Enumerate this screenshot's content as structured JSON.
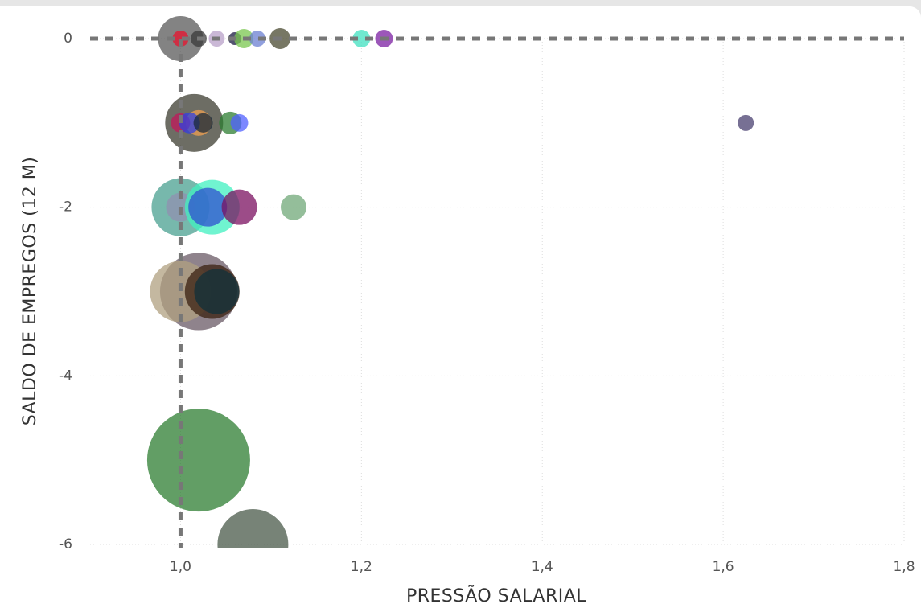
{
  "chart_data": {
    "type": "scatter",
    "x_label": "PRESSÃO SALARIAL",
    "y_label": "SALDO DE EMPREGOS (12 M)",
    "x": [
      1.0,
      1.0,
      1.02,
      1.04,
      1.06,
      1.07,
      1.085,
      1.11,
      1.2,
      1.225,
      1.015,
      1.02,
      1.0,
      1.01,
      1.025,
      1.055,
      1.065,
      1.625,
      1.0,
      1.0,
      1.035,
      1.03,
      1.065,
      1.125,
      1.02,
      1.0,
      1.035,
      1.04,
      1.02,
      1.08
    ],
    "values": [
      0,
      0,
      0,
      0,
      0,
      0,
      0,
      0,
      0,
      0,
      -1,
      -1,
      -1,
      -1,
      -1,
      -1,
      -1,
      -1,
      -2,
      -2,
      -2,
      -2,
      -2,
      -2,
      -3,
      -3,
      -3,
      -3,
      -5,
      -6
    ],
    "sizes": [
      196,
      25,
      25,
      25,
      16,
      36,
      25,
      42,
      30,
      30,
      324,
      64,
      36,
      42,
      36,
      49,
      30,
      25,
      324,
      81,
      289,
      144,
      121,
      64,
      576,
      361,
      289,
      196,
      1024,
      484
    ],
    "colors": [
      "#5a5a5a",
      "#e8112d",
      "#3a3a3a",
      "#b8a0c8",
      "#1a1a40",
      "#7ac74f",
      "#6b7fd1",
      "#4a4a30",
      "#40e0c0",
      "#7b1fa2",
      "#3c3c30",
      "#f0a050",
      "#c2185b",
      "#3040e0",
      "#1a2a3a",
      "#2e7d32",
      "#5060ff",
      "#4a4070",
      "#4aa090",
      "#9090b0",
      "#40f0c0",
      "#3050d0",
      "#7b1060",
      "#70a878",
      "#6a5a65",
      "#b0a080",
      "#3a2010",
      "#10303a",
      "#2e7d32",
      "#4a5a4a"
    ],
    "xlim": [
      0.9,
      1.8
    ],
    "ylim": [
      -6,
      0
    ],
    "xticks": [
      {
        "value": 1.0,
        "label": "1,0"
      },
      {
        "value": 1.2,
        "label": "1,2"
      },
      {
        "value": 1.4,
        "label": "1,4"
      },
      {
        "value": 1.6,
        "label": "1,6"
      },
      {
        "value": 1.8,
        "label": "1,8"
      }
    ],
    "yticks": [
      0,
      -2,
      -4,
      -6
    ],
    "grid": true,
    "reference_lines": [
      {
        "axis": "x",
        "value": 1.0
      },
      {
        "axis": "y",
        "value": 0
      }
    ]
  }
}
